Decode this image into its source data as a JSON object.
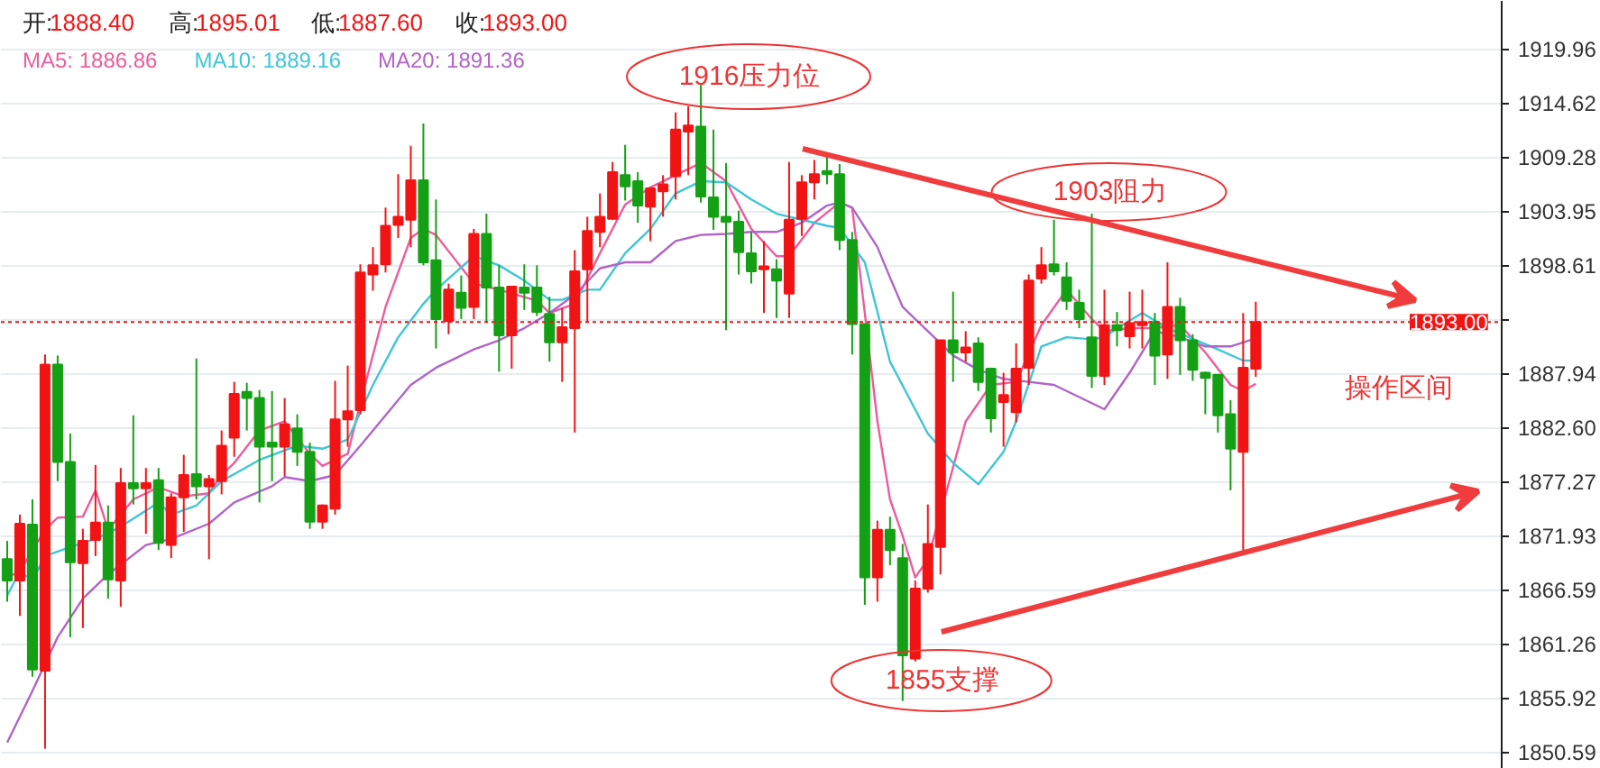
{
  "chart_data": {
    "type": "candlestick",
    "categories": [
      null,
      null,
      null,
      null,
      null,
      null,
      null,
      null,
      null,
      null,
      null,
      null,
      null,
      null,
      null,
      null,
      null,
      null,
      null,
      null,
      null,
      null,
      null,
      null,
      null,
      null,
      null,
      null,
      null,
      null,
      null,
      null,
      null,
      null,
      null,
      null,
      null,
      null,
      null,
      null,
      null,
      null,
      null,
      null,
      null,
      null,
      null,
      null,
      null,
      null,
      null,
      null,
      null,
      null,
      null,
      null,
      null,
      null,
      null,
      null,
      null,
      null,
      null,
      null,
      null,
      null,
      null,
      null,
      null,
      null,
      null,
      null,
      null,
      null,
      null,
      null,
      null,
      null,
      null,
      null,
      null,
      null,
      null,
      null,
      null,
      null,
      null,
      null,
      null,
      null,
      null,
      null,
      null,
      null,
      null,
      null,
      null,
      null,
      null,
      null,
      null,
      null,
      null,
      null,
      null,
      null,
      null,
      null,
      null,
      null,
      null,
      null,
      null,
      null,
      null,
      null,
      null,
      null,
      null
    ],
    "ohlc": [
      [
        1869.6,
        1871.4,
        1865.4,
        1867.5
      ],
      [
        1867.5,
        1874.0,
        1864.0,
        1873.1
      ],
      [
        1873.0,
        1875.5,
        1858.0,
        1858.7
      ],
      [
        1858.6,
        1889.8,
        1850.9,
        1888.8
      ],
      [
        1888.8,
        1889.7,
        1877.3,
        1879.2
      ],
      [
        1879.2,
        1882.0,
        1861.9,
        1869.3
      ],
      [
        1869.2,
        1872.6,
        1862.8,
        1871.4
      ],
      [
        1871.5,
        1878.9,
        1869.9,
        1873.2
      ],
      [
        1873.2,
        1874.9,
        1865.7,
        1867.6
      ],
      [
        1867.5,
        1878.6,
        1864.9,
        1877.1
      ],
      [
        1877.1,
        1883.8,
        1875.0,
        1876.6
      ],
      [
        1876.6,
        1878.6,
        1872.1,
        1877.1
      ],
      [
        1877.4,
        1878.6,
        1870.5,
        1871.2
      ],
      [
        1871.0,
        1876.1,
        1869.7,
        1875.7
      ],
      [
        1875.7,
        1879.9,
        1872.3,
        1877.9
      ],
      [
        1878.0,
        1889.4,
        1875.5,
        1876.8
      ],
      [
        1876.8,
        1877.9,
        1869.6,
        1877.5
      ],
      [
        1877.3,
        1882.3,
        1876.0,
        1880.8
      ],
      [
        1881.6,
        1887.1,
        1879.7,
        1885.9
      ],
      [
        1886.1,
        1887.0,
        1882.3,
        1885.5
      ],
      [
        1885.5,
        1886.3,
        1875.2,
        1880.7
      ],
      [
        1881.1,
        1886.2,
        1877.3,
        1880.7
      ],
      [
        1880.7,
        1885.5,
        1877.8,
        1882.9
      ],
      [
        1882.5,
        1883.9,
        1878.8,
        1880.2
      ],
      [
        1880.2,
        1881.1,
        1872.6,
        1873.3
      ],
      [
        1873.3,
        1875.0,
        1872.6,
        1874.9
      ],
      [
        1874.6,
        1887.2,
        1874.0,
        1883.4
      ],
      [
        1883.4,
        1888.7,
        1880.7,
        1884.2
      ],
      [
        1884.3,
        1898.7,
        1883.9,
        1897.9
      ],
      [
        1897.7,
        1900.4,
        1896.1,
        1898.6
      ],
      [
        1898.7,
        1904.3,
        1897.9,
        1902.5
      ],
      [
        1902.6,
        1907.6,
        1901.3,
        1903.4
      ],
      [
        1903.1,
        1910.4,
        1900.4,
        1907.0
      ],
      [
        1907.0,
        1912.6,
        1898.6,
        1898.9
      ],
      [
        1899.1,
        1905.1,
        1890.4,
        1893.3
      ],
      [
        1893.1,
        1896.8,
        1891.8,
        1896.2
      ],
      [
        1895.9,
        1897.6,
        1893.3,
        1894.4
      ],
      [
        1894.5,
        1902.2,
        1893.3,
        1901.7
      ],
      [
        1901.7,
        1903.7,
        1893.0,
        1896.4
      ],
      [
        1896.4,
        1898.6,
        1888.1,
        1891.7
      ],
      [
        1891.7,
        1896.5,
        1888.4,
        1896.5
      ],
      [
        1896.4,
        1898.7,
        1894.2,
        1895.9
      ],
      [
        1896.4,
        1898.6,
        1893.6,
        1894.0
      ],
      [
        1893.8,
        1895.5,
        1889.1,
        1891.0
      ],
      [
        1891.0,
        1894.4,
        1887.1,
        1892.5
      ],
      [
        1892.4,
        1900.1,
        1882.1,
        1898.0
      ],
      [
        1898.2,
        1903.4,
        1893.0,
        1902.0
      ],
      [
        1901.9,
        1905.7,
        1900.4,
        1903.4
      ],
      [
        1903.2,
        1908.8,
        1903.1,
        1907.8
      ],
      [
        1907.5,
        1910.5,
        1905.0,
        1906.4
      ],
      [
        1906.9,
        1907.8,
        1902.8,
        1904.5
      ],
      [
        1904.4,
        1906.3,
        1901.0,
        1906.2
      ],
      [
        1905.9,
        1907.5,
        1903.4,
        1906.6
      ],
      [
        1907.4,
        1913.7,
        1905.1,
        1912.0
      ],
      [
        1911.8,
        1914.3,
        1907.5,
        1912.4
      ],
      [
        1912.3,
        1916.4,
        1904.8,
        1905.4
      ],
      [
        1905.3,
        1912.0,
        1902.1,
        1903.4
      ],
      [
        1903.4,
        1908.7,
        1892.2,
        1902.9
      ],
      [
        1902.9,
        1904.0,
        1897.7,
        1899.9
      ],
      [
        1899.8,
        1901.9,
        1896.8,
        1898.0
      ],
      [
        1898.2,
        1901.0,
        1893.9,
        1898.5
      ],
      [
        1898.2,
        1899.2,
        1893.4,
        1897.1
      ],
      [
        1895.8,
        1908.8,
        1893.4,
        1903.1
      ],
      [
        1903.2,
        1907.5,
        1901.5,
        1906.8
      ],
      [
        1906.8,
        1909.0,
        1905.1,
        1907.6
      ],
      [
        1907.9,
        1909.6,
        1906.6,
        1907.6
      ],
      [
        1907.6,
        1908.6,
        1900.1,
        1901.1
      ],
      [
        1901.1,
        1901.9,
        1889.8,
        1892.8
      ],
      [
        1892.8,
        1892.8,
        1865.1,
        1867.8
      ],
      [
        1867.8,
        1873.4,
        1865.4,
        1872.5
      ],
      [
        1872.5,
        1873.8,
        1869.0,
        1870.5
      ],
      [
        1869.7,
        1871.1,
        1855.6,
        1860.1
      ],
      [
        1859.8,
        1867.5,
        1859.5,
        1866.7
      ],
      [
        1866.7,
        1875.0,
        1866.3,
        1871.1
      ],
      [
        1870.8,
        1891.2,
        1868.1,
        1891.2
      ],
      [
        1891.2,
        1896.0,
        1887.1,
        1890.0
      ],
      [
        1890.0,
        1892.1,
        1889.1,
        1890.5
      ],
      [
        1890.9,
        1891.5,
        1886.2,
        1887.1
      ],
      [
        1888.4,
        1888.5,
        1882.1,
        1883.5
      ],
      [
        1885.1,
        1888.0,
        1880.7,
        1885.8
      ],
      [
        1884.1,
        1890.9,
        1883.1,
        1888.4
      ],
      [
        1888.5,
        1897.7,
        1886.8,
        1897.1
      ],
      [
        1897.3,
        1900.4,
        1896.8,
        1898.6
      ],
      [
        1898.7,
        1903.1,
        1897.6,
        1898.0
      ],
      [
        1897.4,
        1898.9,
        1894.2,
        1895.1
      ],
      [
        1894.9,
        1896.2,
        1892.4,
        1893.3
      ],
      [
        1891.5,
        1903.7,
        1886.5,
        1887.7
      ],
      [
        1887.7,
        1896.2,
        1886.8,
        1892.7
      ],
      [
        1892.7,
        1894.0,
        1890.6,
        1892.2
      ],
      [
        1891.6,
        1896.0,
        1890.4,
        1892.9
      ],
      [
        1892.7,
        1896.2,
        1890.4,
        1893.0
      ],
      [
        1893.0,
        1893.9,
        1886.8,
        1889.7
      ],
      [
        1889.8,
        1898.9,
        1887.4,
        1894.5
      ],
      [
        1894.5,
        1895.4,
        1887.8,
        1891.2
      ],
      [
        1891.2,
        1891.8,
        1887.2,
        1888.3
      ],
      [
        1888.0,
        1888.1,
        1883.9,
        1887.5
      ],
      [
        1887.8,
        1887.8,
        1882.1,
        1883.8
      ],
      [
        1883.9,
        1885.3,
        1876.4,
        1880.5
      ],
      [
        1880.2,
        1893.9,
        1870.1,
        1888.5
      ],
      [
        1888.4,
        1895.01,
        1887.6,
        1893.0
      ],
      null,
      null,
      null,
      null,
      null,
      null,
      null,
      null,
      null,
      null,
      null,
      null,
      null,
      null,
      null,
      null,
      null,
      null,
      null
    ],
    "colors": [
      "#14a014",
      "#f21414",
      "#14a014",
      "#f21414",
      "#14a014",
      "#14a014",
      "#f21414",
      "#f21414",
      "#14a014",
      "#f21414",
      "#14a014",
      "#f21414",
      "#14a014",
      "#f21414",
      "#f21414",
      "#14a014",
      "#f21414",
      "#f21414",
      "#f21414",
      "#14a014",
      "#14a014",
      "#14a014",
      "#f21414",
      "#14a014",
      "#14a014",
      "#f21414",
      "#f21414",
      "#f21414",
      "#f21414",
      "#f21414",
      "#f21414",
      "#f21414",
      "#f21414",
      "#14a014",
      "#14a014",
      "#f21414",
      "#14a014",
      "#f21414",
      "#14a014",
      "#14a014",
      "#f21414",
      "#14a014",
      "#14a014",
      "#14a014",
      "#f21414",
      "#f21414",
      "#f21414",
      "#f21414",
      "#f21414",
      "#14a014",
      "#14a014",
      "#f21414",
      "#f21414",
      "#f21414",
      "#f21414",
      "#14a014",
      "#14a014",
      "#14a014",
      "#14a014",
      "#14a014",
      "#f21414",
      "#14a014",
      "#f21414",
      "#f21414",
      "#f21414",
      "#14a014",
      "#14a014",
      "#14a014",
      "#14a014",
      "#f21414",
      "#14a014",
      "#14a014",
      "#f21414",
      "#f21414",
      "#f21414",
      "#14a014",
      "#f21414",
      "#14a014",
      "#14a014",
      "#f21414",
      "#f21414",
      "#f21414",
      "#f21414",
      "#14a014",
      "#14a014",
      "#14a014",
      "#14a014",
      "#f21414",
      "#14a014",
      "#f21414",
      "#f21414",
      "#14a014",
      "#f21414",
      "#14a014",
      "#14a014",
      "#14a014",
      "#14a014",
      "#14a014",
      "#f21414",
      "#f21414",
      null,
      null,
      null,
      null,
      null,
      null,
      null,
      null,
      null,
      null,
      null,
      null,
      null,
      null,
      null,
      null,
      null,
      null,
      null
    ],
    "series": [
      {
        "type": "line",
        "name": "MA5: 1886.86",
        "color": "#ec5c9c",
        "values": [
          1867.8,
          1868.4,
          null,
          1872.5,
          1873.7,
          null,
          1873.8,
          1876.4,
          1872.5,
          null,
          1875.5,
          null,
          1876.7,
          null,
          1875.8,
          null,
          1876.1,
          1877.9,
          1879.1,
          null,
          1882.3,
          null,
          1883.2,
          null,
          1880.0,
          1878.8,
          null,
          1880.0,
          1885.0,
          null,
          1894.5,
          null,
          1901.3,
          1902.2,
          1901.6,
          null,
          null,
          1896.8,
          null,
          1896.2,
          null,
          null,
          1895.1,
          1893.9,
          null,
          1894.8,
          null,
          1899.8,
          null,
          1904.6,
          null,
          1906.3,
          null,
          1907.5,
          null,
          1908.7,
          null,
          1906.9,
          null,
          1902.2,
          null,
          1899.5,
          1899.5,
          null,
          1902.8,
          null,
          1904.8,
          1904.3,
          1893.9,
          1883.2,
          1875.5,
          1871.9,
          1867.8,
          1869.6,
          null,
          null,
          1883.2,
          null,
          1886.8,
          null,
          1887.1,
          null,
          1892.7,
          null,
          1896.2,
          null,
          1893.3,
          1892.1,
          null,
          1892.4,
          null,
          1892.4,
          null,
          1892.7,
          null,
          1890.0,
          null,
          1886.8,
          1886.2,
          1886.9,
          null,
          null,
          null,
          null,
          null,
          null,
          null,
          null,
          null,
          null,
          null,
          null,
          null,
          null,
          null,
          null,
          null,
          null,
          null
        ]
      },
      {
        "type": "line",
        "name": "MA10: 1889.16",
        "color": "#3ec6d6",
        "values": [
          1866.0,
          1868.4,
          1867.5,
          1869.9,
          null,
          1870.8,
          null,
          1871.6,
          null,
          1872.8,
          null,
          null,
          1875.2,
          1874.0,
          null,
          1874.9,
          null,
          1877.3,
          null,
          null,
          1879.4,
          null,
          null,
          1880.8,
          null,
          1880.5,
          null,
          1881.4,
          null,
          1886.8,
          null,
          1891.5,
          null,
          1894.8,
          1896.2,
          null,
          null,
          1899.5,
          null,
          1898.6,
          null,
          1897.1,
          null,
          1895.2,
          1895.2,
          null,
          1896.2,
          1896.2,
          null,
          1899.8,
          null,
          1902.2,
          null,
          1905.7,
          null,
          1906.9,
          null,
          1906.8,
          null,
          1905.1,
          null,
          1903.7,
          null,
          1903.1,
          null,
          1902.5,
          1902.3,
          null,
          1898.9,
          null,
          1889.1,
          null,
          null,
          1882.0,
          null,
          1879.1,
          null,
          1877.0,
          null,
          1880.2,
          1883.2,
          null,
          1890.6,
          null,
          1891.5,
          null,
          1891.3,
          1891.5,
          1892.4,
          null,
          1893.9,
          null,
          1892.4,
          null,
          null,
          null,
          1890.3,
          null,
          1889.2,
          1889.2,
          null,
          null,
          null,
          null,
          null,
          null,
          null,
          null,
          null,
          null,
          null,
          null,
          null,
          null,
          null,
          null,
          null,
          null,
          null
        ]
      },
      {
        "type": "line",
        "name": "MA20: 1891.36",
        "color": "#b064c8",
        "values": [
          1851.5,
          null,
          1856.6,
          null,
          1861.9,
          null,
          1865.7,
          null,
          1868.1,
          null,
          null,
          1871.0,
          null,
          1871.6,
          null,
          null,
          1873.1,
          null,
          1875.2,
          null,
          null,
          1876.8,
          1877.7,
          null,
          1877.3,
          null,
          1877.9,
          null,
          1880.8,
          null,
          1883.8,
          null,
          1886.8,
          null,
          1888.5,
          null,
          null,
          1890.3,
          null,
          1891.2,
          null,
          1892.4,
          null,
          1893.9,
          null,
          1895.7,
          null,
          1898.3,
          null,
          1898.9,
          null,
          1898.9,
          null,
          1901.0,
          null,
          1901.6,
          null,
          1901.7,
          null,
          1901.9,
          null,
          1901.9,
          null,
          1902.8,
          null,
          1904.5,
          1904.8,
          1904.3,
          null,
          1900.4,
          1897.4,
          1894.5,
          null,
          1892.1,
          null,
          1889.7,
          null,
          1888.3,
          null,
          1887.4,
          null,
          1887.1,
          null,
          1886.8,
          null,
          null,
          1885.0,
          1884.4,
          null,
          1888.0,
          null,
          1892.1,
          null,
          1891.5,
          null,
          1890.6,
          null,
          1890.6,
          null,
          1891.4,
          null,
          null,
          null,
          null,
          null,
          null,
          null,
          null,
          null,
          null,
          null,
          null,
          null,
          null,
          null,
          null,
          null,
          null,
          null
        ]
      }
    ],
    "ylim": [
      1848.9,
      1924.7
    ],
    "yticks": [
      1850.59,
      1855.92,
      1861.26,
      1866.59,
      1871.93,
      1877.27,
      {
        "value": 1882.6,
        "label": "1882.60"
      },
      1887.94,
      {
        "value": 1893.27,
        "label": null
      },
      1898.61,
      1903.95,
      1909.28,
      1914.62,
      1919.96
    ],
    "grid": "y",
    "tick_labels": "y",
    "legend": "top left",
    "line_style": "solid",
    "ref_lines": [
      {
        "axis": "y",
        "value": 1893.0,
        "label": "1893.00",
        "color": "#f21414",
        "line_style": "dotted"
      }
    ],
    "annotations": [
      "开:",
      "1888.40",
      "高:",
      "1895.01",
      "低:",
      "1887.60",
      "收:",
      "1893.00",
      "1916压力位",
      "1903阻力",
      "1855支撑",
      "操作区间"
    ]
  }
}
